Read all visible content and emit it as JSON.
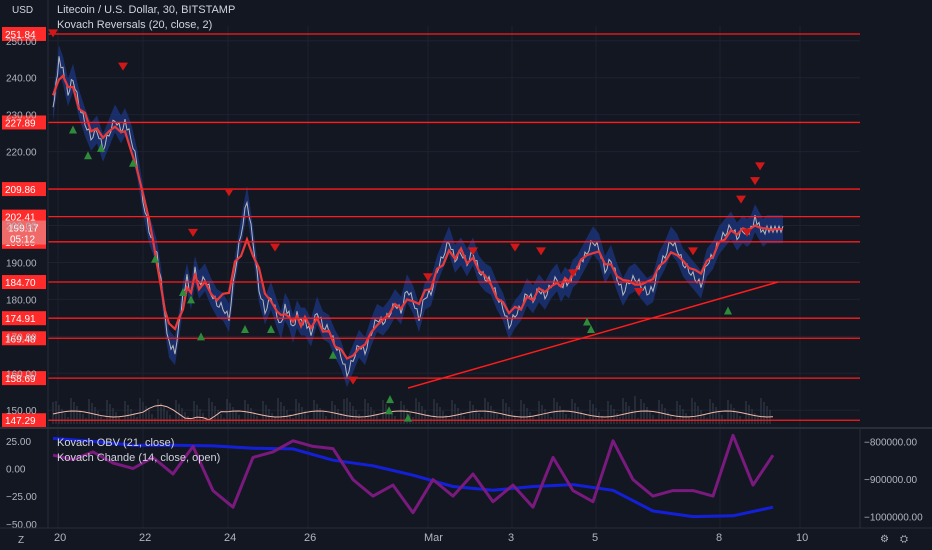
{
  "header": {
    "symbol_title": "Litecoin / U.S. Dollar, 30, BITSTAMP",
    "indicator": "Kovach Reversals (20, close, 2)",
    "currency": "USD"
  },
  "subpane": {
    "indicator1": "Kovach OBV (21, close)",
    "indicator2": "Kovach Chande (14, close, open)"
  },
  "corners": {
    "left": "Z",
    "right": "⛭",
    "right2": "⚙"
  },
  "colors": {
    "background": "#131722",
    "price": "#c8c8c8",
    "ma": "#e83a3a",
    "band": "#1c3680",
    "level": "#ff1c1c",
    "buy": "#2e8b3a",
    "sell": "#d01818",
    "obv": "#1420d8",
    "chande": "#7a1a7e",
    "label_bg": "#ff2a2a",
    "current_bg": "#f06a6a"
  },
  "chart_data": [
    {
      "type": "line",
      "title": "Litecoin / U.S. Dollar, 30, BITSTAMP",
      "x_ticks": [
        "20",
        "22",
        "24",
        "26",
        "Mar",
        "3",
        "5",
        "8",
        "10"
      ],
      "x_range": [
        19.8,
        10.8
      ],
      "ylim": [
        146,
        254
      ],
      "y_ticks": [
        150,
        160,
        170,
        180,
        190,
        200,
        220,
        230,
        240,
        250
      ],
      "y_tick_labels": [
        "150.00",
        "160.00",
        "170.00",
        "180.00",
        "190.00",
        "200.00",
        "220.00",
        "230.00",
        "240.00",
        "250.00"
      ],
      "levels": [
        251.84,
        227.89,
        209.86,
        202.41,
        195.59,
        184.7,
        174.91,
        169.48,
        158.69,
        147.29
      ],
      "level_labels": [
        "251.84",
        "227.89",
        "209.86",
        "202.41",
        "195.59",
        "184.70",
        "174.91",
        "169.48",
        "158.69",
        "147.29"
      ],
      "current_price": {
        "value": 199.17,
        "label": "199.17",
        "countdown": "05:12"
      },
      "series": [
        {
          "x": [
            0,
            3,
            6,
            10,
            15,
            20,
            26,
            32,
            38,
            44,
            50,
            56,
            62,
            68,
            72,
            78,
            84,
            90,
            96,
            100,
            104,
            108,
            112,
            116,
            122,
            126,
            130,
            134,
            138,
            142,
            146,
            152,
            158,
            164,
            170,
            176,
            182,
            188,
            194,
            200,
            206,
            212,
            218,
            224,
            228,
            232,
            236,
            240,
            244,
            248,
            252,
            258,
            264,
            270,
            276,
            282,
            288,
            294,
            300,
            306,
            312,
            318,
            324,
            330,
            336,
            342,
            348,
            354,
            360,
            366,
            372,
            378,
            384,
            390,
            396,
            402,
            408,
            414,
            420,
            426,
            432,
            438,
            444,
            450,
            456,
            462,
            468,
            474,
            480,
            486,
            492,
            498,
            504,
            508,
            512,
            516,
            520,
            524,
            528,
            534,
            540,
            546,
            552,
            558,
            564,
            570,
            576,
            582,
            588,
            594,
            600,
            606,
            612,
            618,
            624,
            630,
            636,
            642,
            648,
            654,
            660,
            666,
            672,
            678,
            684,
            690,
            694,
            698,
            702,
            706,
            710,
            714,
            718,
            722,
            726,
            730
          ],
          "y": [
            232,
            238,
            245,
            242,
            236,
            240,
            233,
            228,
            224,
            226,
            221,
            225,
            229,
            226,
            228,
            224,
            217,
            207,
            199,
            196,
            192,
            185,
            175,
            168,
            166,
            173,
            181,
            186,
            181,
            188,
            184,
            186,
            182,
            179,
            178,
            175,
            188,
            198,
            207,
            196,
            183,
            177,
            181,
            176,
            173,
            178,
            176,
            172,
            176,
            174,
            174,
            171,
            177,
            173,
            172,
            168,
            165,
            160,
            164,
            168,
            166,
            171,
            175,
            174,
            176,
            179,
            177,
            183,
            180,
            175,
            181,
            182,
            188,
            192,
            196,
            191,
            193,
            190,
            193,
            188,
            186,
            185,
            181,
            178,
            173,
            176,
            178,
            182,
            180,
            183,
            181,
            184,
            186,
            183,
            185,
            184,
            187,
            188,
            190,
            193,
            196,
            194,
            188,
            191,
            186,
            182,
            185,
            186,
            184,
            182,
            183,
            189,
            192,
            196,
            194,
            190,
            188,
            186,
            184,
            190,
            192,
            196,
            198,
            200,
            197,
            199,
            198,
            199,
            202,
            200,
            198,
            199,
            199,
            199,
            199,
            199
          ]
        }
      ]
    },
    {
      "type": "line",
      "title": "",
      "left_ylim": [
        -52,
        33
      ],
      "left_y_ticks": [
        25,
        0,
        -25,
        -50
      ],
      "left_y_tick_labels": [
        "25.00",
        "0.00",
        "−25.00",
        "−50.00"
      ],
      "right_ylim": [
        -1025000,
        -775000
      ],
      "right_y_ticks": [
        -800000,
        -900000,
        -1000000
      ],
      "right_y_tick_labels": [
        "−800000.00",
        "−900000.00",
        "−1000000.00"
      ],
      "series": [
        {
          "name": "Kovach OBV (21, close)",
          "axis": "right",
          "x": [
            0,
            40,
            80,
            120,
            160,
            200,
            240,
            280,
            320,
            360,
            400,
            440,
            480,
            520,
            560,
            600,
            640,
            680,
            720
          ],
          "y": [
            -792000,
            -800000,
            -810000,
            -810000,
            -812000,
            -818000,
            -820000,
            -850000,
            -865000,
            -890000,
            -920000,
            -930000,
            -920000,
            -915000,
            -930000,
            -985000,
            -1000000,
            -998000,
            -975000
          ]
        },
        {
          "name": "Kovach Chande (14, close, open)",
          "axis": "left",
          "x": [
            0,
            20,
            40,
            60,
            80,
            100,
            120,
            140,
            160,
            180,
            200,
            220,
            240,
            260,
            280,
            300,
            320,
            340,
            360,
            380,
            400,
            420,
            440,
            460,
            480,
            500,
            520,
            540,
            560,
            580,
            600,
            620,
            640,
            660,
            680,
            700,
            720
          ],
          "y": [
            12,
            8,
            15,
            5,
            0,
            10,
            -5,
            20,
            -20,
            -35,
            10,
            15,
            25,
            20,
            18,
            -10,
            -25,
            -15,
            -40,
            -10,
            -25,
            -5,
            -30,
            -15,
            -35,
            10,
            -20,
            -30,
            25,
            -10,
            -25,
            -20,
            -20,
            -25,
            30,
            -15,
            12
          ]
        }
      ]
    }
  ]
}
